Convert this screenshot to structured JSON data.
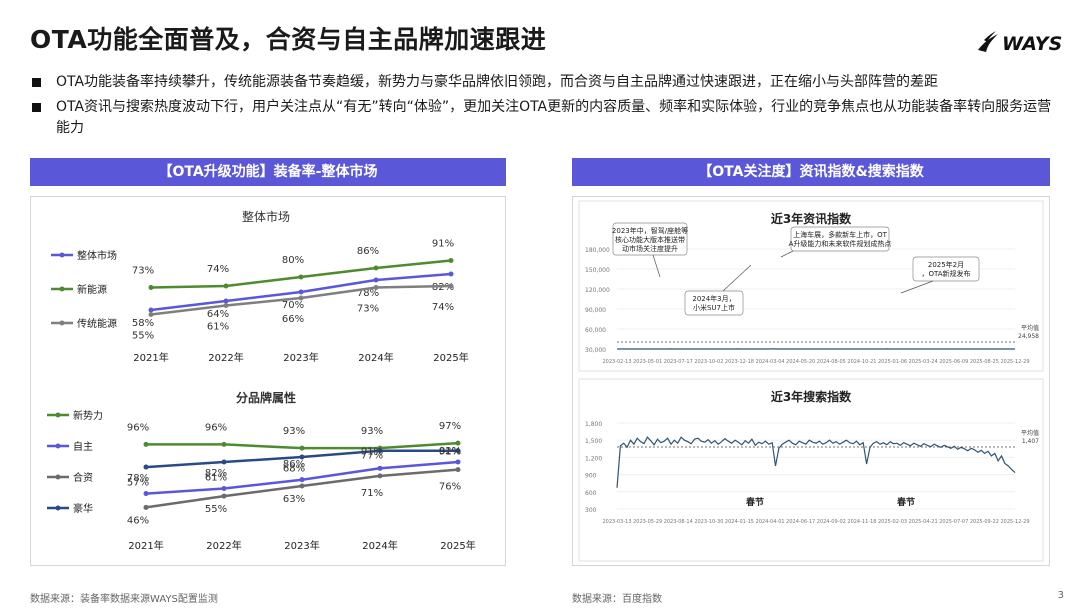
{
  "header": {
    "title": "OTA功能全面普及，合资与自主品牌加速跟进",
    "logo_text": "WAYS"
  },
  "bullets": [
    "OTA功能装备率持续攀升，传统能源装备节奏趋缓，新势力与豪华品牌依旧领跑，而合资与自主品牌通过快速跟进，正在缩小与头部阵营的差距",
    "OTA资讯与搜索热度波动下行，用户关注点从“有无”转向“体验”，更加关注OTA更新的内容质量、频率和实际体验，行业的竞争焦点也从功能装备率转向服务运营能力"
  ],
  "left_panel": {
    "header": "【OTA升级功能】装备率-整体市场"
  },
  "right_panel": {
    "header": "【OTA关注度】资讯指数&搜索指数"
  },
  "footer": {
    "left": "数据来源：装备率数据来源WAYS配置监测",
    "right": "数据来源：百度指数",
    "page": "3"
  },
  "chart_data": [
    {
      "type": "line",
      "title": "整体市场",
      "categories": [
        "2021年",
        "2022年",
        "2023年",
        "2024年",
        "2025年"
      ],
      "series": [
        {
          "name": "整体市场",
          "values": [
            58,
            64,
            70,
            78,
            82
          ],
          "color": "#5b57d9"
        },
        {
          "name": "新能源",
          "values": [
            73,
            74,
            80,
            86,
            91
          ],
          "color": "#4e8a2f"
        },
        {
          "name": "传统能源",
          "values": [
            55,
            61,
            66,
            73,
            74
          ],
          "color": "#7f7f7f"
        }
      ],
      "labels_text": {
        "整体市场": [
          "58%",
          "64%",
          "70%",
          "78%",
          "82%"
        ],
        "新能源": [
          "73%",
          "74%",
          "80%",
          "86%",
          "91%"
        ],
        "传统能源": [
          "55%",
          "61%",
          "66%",
          "73%",
          "74%"
        ]
      },
      "ylim": [
        40,
        100
      ]
    },
    {
      "type": "line",
      "title": "分品牌属性",
      "categories": [
        "2021年",
        "2022年",
        "2023年",
        "2024年",
        "2025年"
      ],
      "series": [
        {
          "name": "新势力",
          "values": [
            96,
            96,
            93,
            93,
            97
          ],
          "color": "#4e8a2f"
        },
        {
          "name": "自主",
          "values": [
            57,
            61,
            68,
            77,
            82
          ],
          "color": "#5b57d9"
        },
        {
          "name": "合资",
          "values": [
            46,
            55,
            63,
            71,
            76
          ],
          "color": "#6b6b6b"
        },
        {
          "name": "豪华",
          "values": [
            78,
            82,
            86,
            91,
            91
          ],
          "color": "#2a4a86"
        }
      ],
      "labels_text": {
        "新势力": [
          "96%",
          "96%",
          "93%",
          "93%",
          "97%"
        ],
        "自主": [
          "57%",
          "61%",
          "68%",
          "77%",
          "82%"
        ],
        "合资": [
          "46%",
          "55%",
          "63%",
          "71%",
          "76%"
        ],
        "豪华": [
          "78%",
          "82%",
          "86%",
          "91%",
          "91%"
        ]
      },
      "ylim": [
        40,
        105
      ]
    },
    {
      "type": "line",
      "title": "近3年资讯指数",
      "y_ticks": [
        "180,000",
        "150,000",
        "120,000",
        "90,000",
        "60,000",
        "30,000"
      ],
      "x_ticks": [
        "2023-02-13",
        "2023-05-01",
        "2023-07-17",
        "2023-10-02",
        "2023-12-18",
        "2024-03-04",
        "2024-05-20",
        "2024-08-05",
        "2024-10-21",
        "2025-01-06",
        "2025-03-24",
        "2025-06-09",
        "2025-08-25",
        "2025-12-29"
      ],
      "avg_label": "平均值",
      "avg_value": "24,958",
      "ylim": [
        0,
        190000
      ],
      "values": [
        12,
        15,
        11,
        18,
        14,
        22,
        13,
        16,
        19,
        12,
        25,
        14,
        18,
        30,
        20,
        15,
        13,
        28,
        24,
        19,
        35,
        60,
        110,
        70,
        35,
        25,
        40,
        30,
        22,
        18,
        15,
        20,
        17,
        24,
        30,
        22,
        18,
        25,
        20,
        30,
        45,
        35,
        22,
        18,
        26,
        40,
        30,
        20,
        25,
        60,
        95,
        50,
        35,
        28,
        40,
        55,
        35,
        28,
        20,
        70,
        90,
        45,
        30,
        25,
        160,
        110,
        55,
        38,
        30,
        25,
        40,
        35,
        28,
        30,
        45,
        38,
        30,
        35,
        30,
        26,
        33,
        28,
        35,
        30,
        40,
        30,
        26,
        32,
        30,
        28,
        36,
        30,
        34,
        40,
        30,
        28,
        35,
        26,
        22,
        30,
        25,
        70,
        40,
        30,
        25,
        28,
        40,
        35,
        28,
        32,
        25,
        28,
        112,
        60,
        40,
        30,
        28,
        32,
        50,
        30,
        26,
        32,
        28,
        22,
        26,
        30,
        55,
        40,
        30,
        26,
        20,
        24,
        30,
        35,
        28,
        32,
        45,
        30,
        25,
        60,
        50,
        30,
        25,
        40,
        35,
        28,
        30,
        24,
        28,
        30,
        22,
        30,
        40,
        35,
        28,
        30,
        35,
        38,
        32,
        40,
        30,
        28,
        32,
        35,
        45,
        30
      ],
      "annotations": [
        "2023年中，智驾/座舱等核心功能大版本推送带动市场关注度提升",
        "2024年3月，小米SU7上市",
        "上海车展，多款新车上市，OTA升级能力和未来软件规划成热点",
        "2025年2月，OTA新规发布"
      ]
    },
    {
      "type": "line",
      "title": "近3年搜索指数",
      "y_ticks": [
        "1,800",
        "1,500",
        "1,200",
        "900",
        "600",
        "300"
      ],
      "x_ticks": [
        "2023-03-13",
        "2023-05-29",
        "2023-08-14",
        "2023-10-30",
        "2024-01-15",
        "2024-04-01",
        "2024-06-17",
        "2024-09-02",
        "2024-11-18",
        "2025-02-03",
        "2025-04-21",
        "2025-07-07",
        "2025-09-22",
        "2025-12-29"
      ],
      "avg_label": "平均值",
      "avg_value": "1,407",
      "ylim": [
        200,
        1900
      ],
      "values": [
        620,
        1450,
        1500,
        1420,
        1560,
        1480,
        1600,
        1530,
        1490,
        1620,
        1550,
        1470,
        1580,
        1510,
        1540,
        1600,
        1480,
        1560,
        1500,
        1620,
        1560,
        1530,
        1490,
        1580,
        1600,
        1540,
        1520,
        1570,
        1500,
        1550,
        1480,
        1530,
        1590,
        1540,
        1500,
        1560,
        1520,
        1470,
        1550,
        1500,
        1580,
        1460,
        1520,
        1490,
        1540,
        1480,
        1510,
        1050,
        1400,
        1480,
        1520,
        1560,
        1500,
        1470,
        1540,
        1510,
        1480,
        1560,
        1520,
        1500,
        1540,
        1480,
        1510,
        1560,
        1500,
        1530,
        1480,
        1520,
        1560,
        1510,
        1490,
        1540,
        1470,
        1510,
        1090,
        1420,
        1500,
        1530,
        1480,
        1510,
        1470,
        1530,
        1490,
        1500,
        1460,
        1510,
        1480,
        1450,
        1500,
        1470,
        1440,
        1490,
        1460,
        1430,
        1480,
        1450,
        1420,
        1460,
        1430,
        1400,
        1440,
        1380,
        1420,
        1390,
        1350,
        1400,
        1370,
        1320,
        1360,
        1300,
        1340,
        1250,
        1300,
        1150,
        1250,
        1100,
        1050,
        980,
        920
      ]
    }
  ]
}
